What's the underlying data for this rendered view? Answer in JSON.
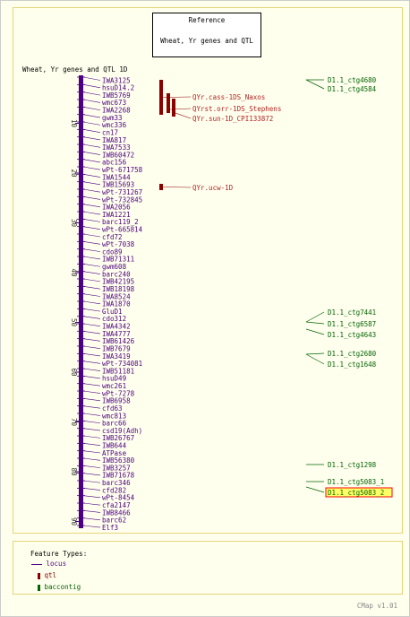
{
  "reference_box": {
    "line1": "Reference",
    "line2": "Wheat, Yr genes and QTL"
  },
  "map_title": "Wheat, Yr genes and QTL 1D",
  "axis_ticks": [
    "10",
    "20",
    "30",
    "40",
    "50",
    "60",
    "70",
    "80",
    "90"
  ],
  "markers": [
    "IWA3125",
    "hsuD14.2",
    "IWB5769",
    "wmc673",
    "IWA2268",
    "gwm33",
    "wmc336",
    "cn17",
    "IWA817",
    "IWA7533",
    "IWB60472",
    "abc156",
    "wPt-671758",
    "IWA1544",
    "IWB15693",
    "wPt-731267",
    "wPt-732845",
    "IWA2056",
    "IWA1221",
    "barc119_2",
    "wPt-665814",
    "cfd72",
    "wPt-7038",
    "cdo89",
    "IWB71311",
    "gwm608",
    "barc240",
    "IWB42195",
    "IWB18198",
    "IWA8524",
    "IWA1870",
    "GluD1",
    "cdo312",
    "IWA4342",
    "IWA4777",
    "IWB61426",
    "IWB7679",
    "IWA3419",
    "wPt-734081",
    "IWB51181",
    "hsuD49",
    "wmc261",
    "wPt-7278",
    "IWB6958",
    "cfd63",
    "wmc813",
    "barc66",
    "csd19(Adh)",
    "IWB26767",
    "IWB644",
    "ATPase",
    "IWB56380",
    "IWB3257",
    "IWB71678",
    "barc346",
    "cfd282",
    "wPt-8454",
    "cfa2147",
    "IWB8466",
    "barc62",
    "Elf3"
  ],
  "qtls": [
    "QYr.cass-1DS_Naxos",
    "QYrst.orr-1DS_Stephens",
    "QYr.sun-1D_CPI133872",
    "QYr.ucw-1D"
  ],
  "contigs": [
    "D1.1_ctg4680",
    "D1.1_ctg4584",
    "D1.1_ctg7441",
    "D1.1_ctg6587",
    "D1.1_ctg4643",
    "D1.1_ctg2680",
    "D1.1_ctg1648",
    "D1.1_ctg1298",
    "D1.1_ctg5083_1",
    "D1.1_ctg5083_2"
  ],
  "highlighted_contig": "D1.1_ctg5083_2",
  "legend": {
    "heading": "Feature Types:",
    "items": [
      {
        "label": "locus",
        "color": "#4b0082",
        "icon": "line"
      },
      {
        "label": "qtl",
        "color": "#8b0000",
        "icon": "bar"
      },
      {
        "label": "baccontig",
        "color": "#006400",
        "icon": "bar"
      }
    ]
  },
  "footer": "CMap v1.01",
  "colors": {
    "chromosome": "#4b0082",
    "qtl": "#8b0000",
    "qtl_label": "#b22222",
    "contig": "#006400",
    "highlight_bg": "#ffff66",
    "highlight_border": "#ff0000",
    "background": "#ffffee"
  }
}
